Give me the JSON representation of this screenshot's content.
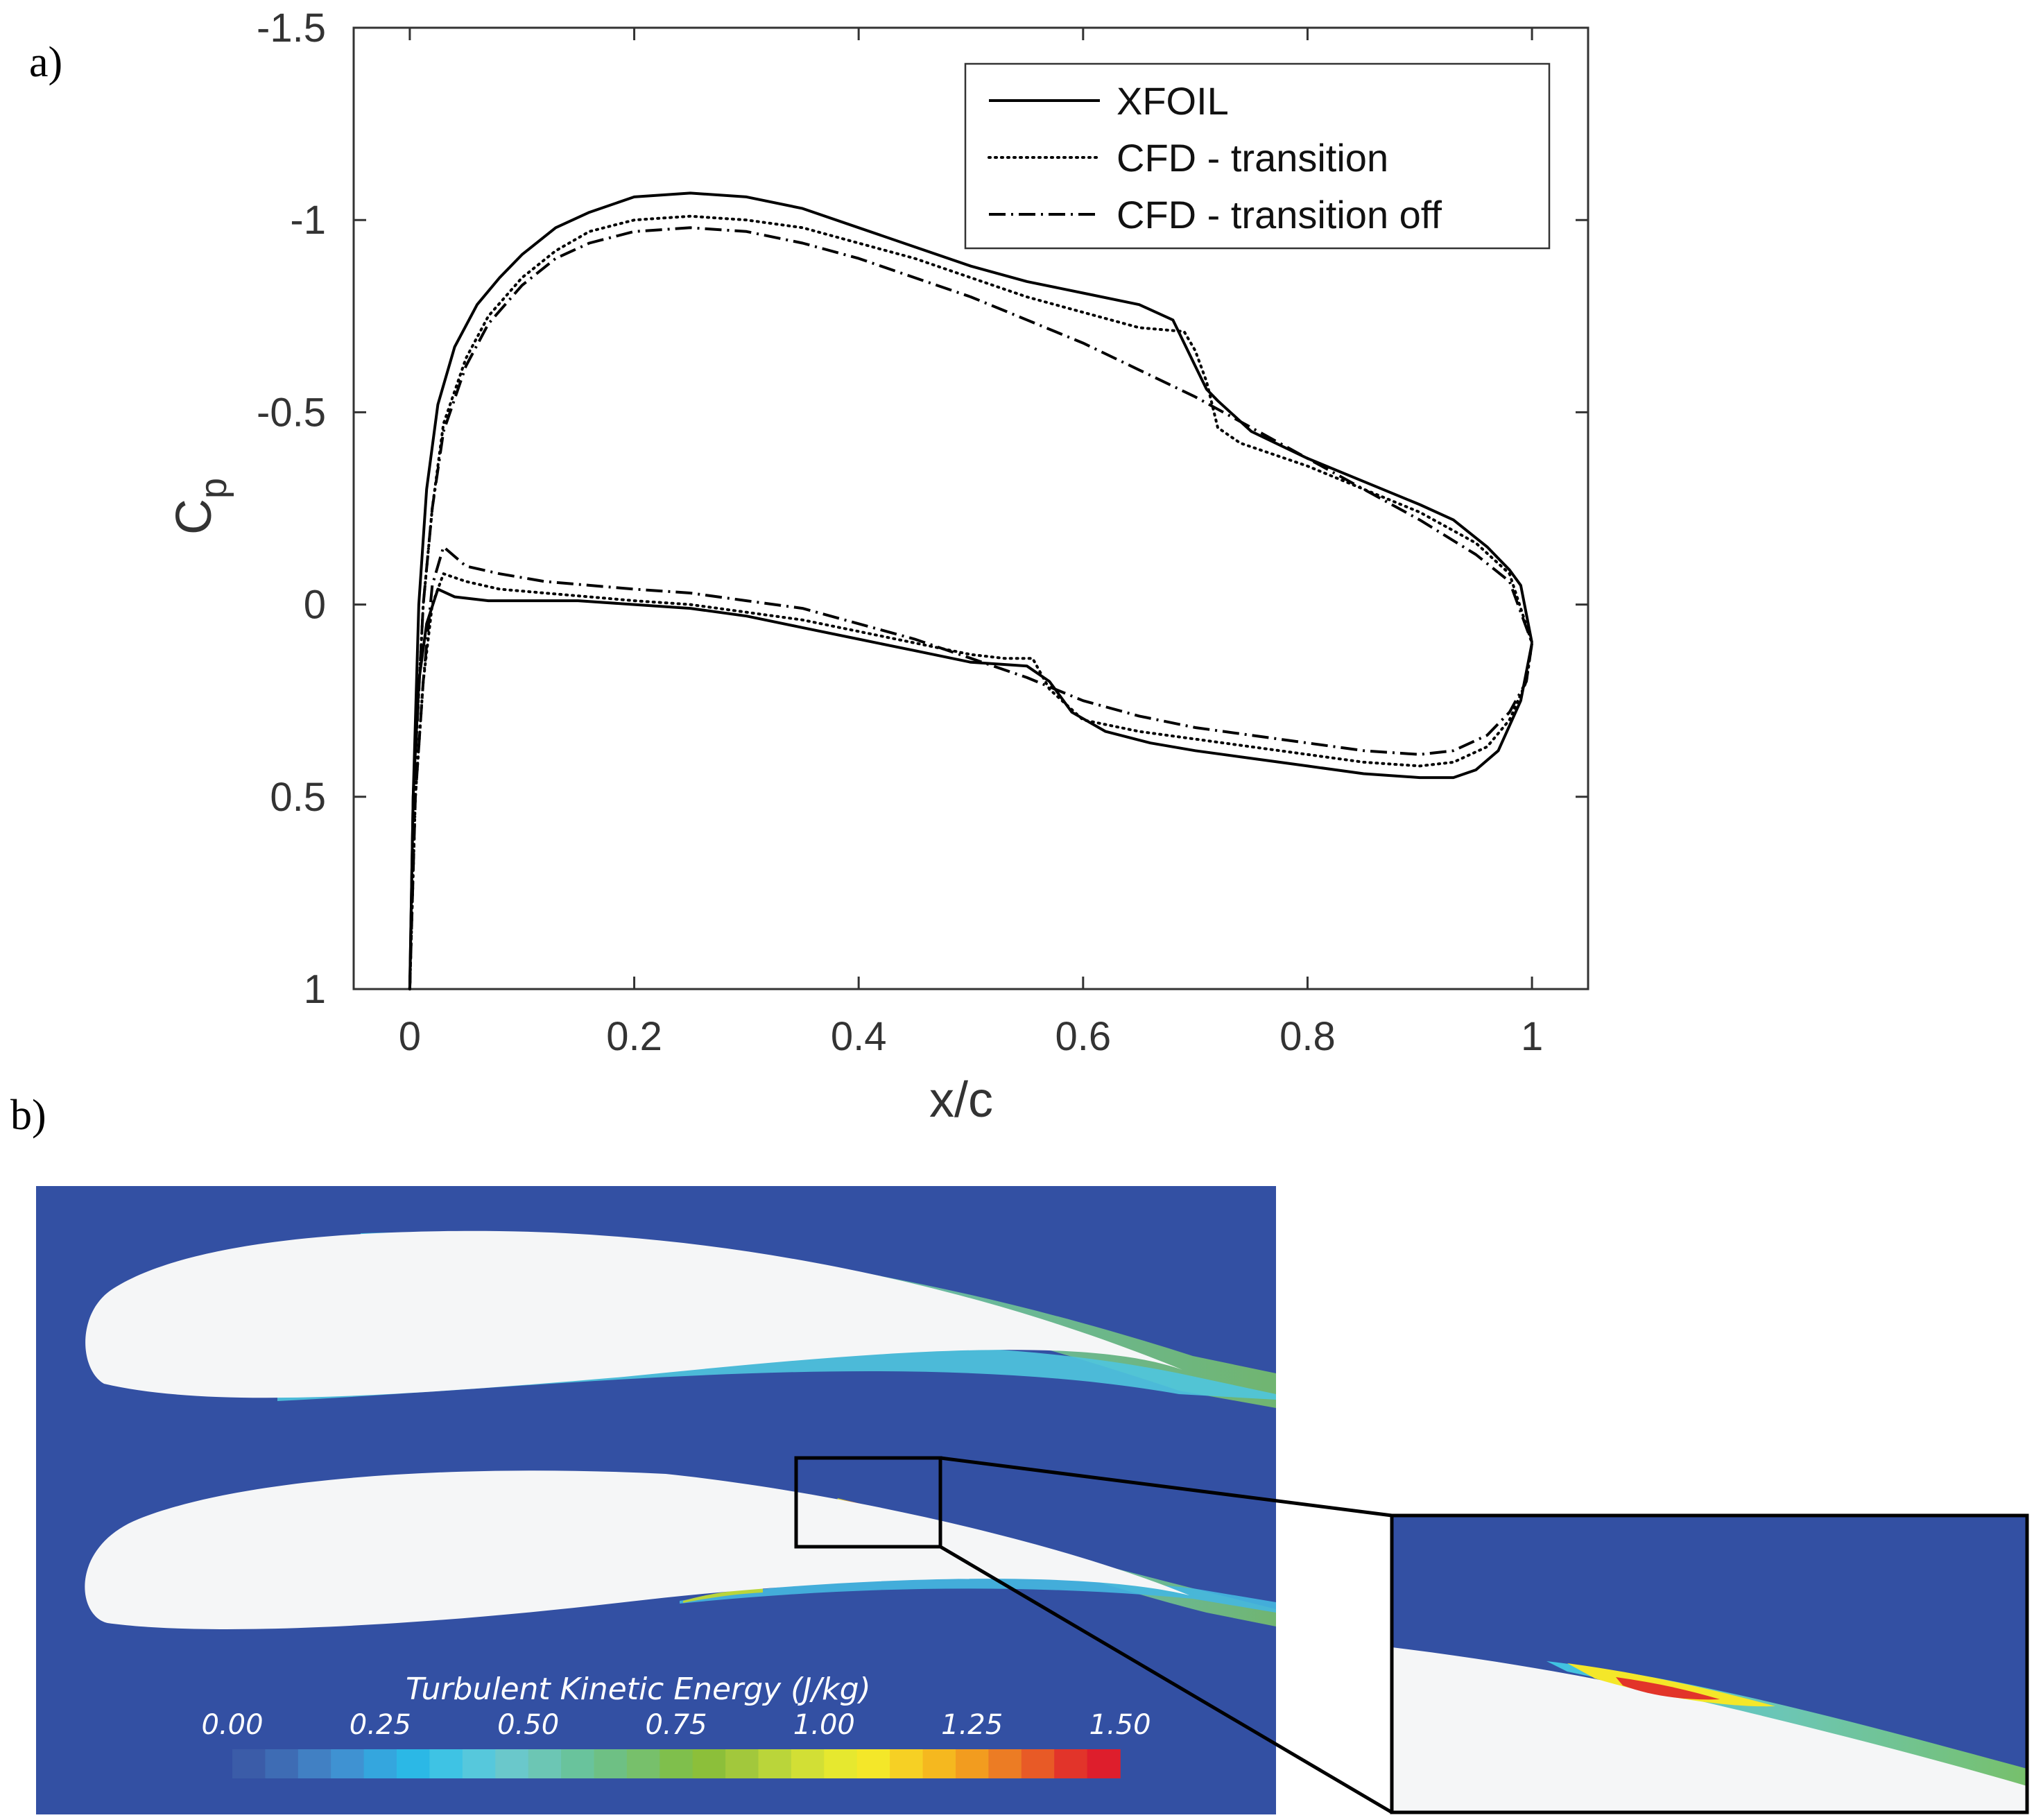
{
  "panel_labels": {
    "a": "a)",
    "b": "b)"
  },
  "chart_data": [
    {
      "type": "line",
      "title": "",
      "xlabel": "x/c",
      "ylabel": "C",
      "ylabel_subscript": "p",
      "xlim": [
        -0.05,
        1.05
      ],
      "ylim": [
        -1.5,
        1
      ],
      "y_reversed": true,
      "xticks": [
        0,
        0.2,
        0.4,
        0.6,
        0.8,
        1
      ],
      "xtick_labels": [
        "0",
        "0.2",
        "0.4",
        "0.6",
        "0.8",
        "1"
      ],
      "yticks": [
        -1.5,
        -1,
        -0.5,
        0,
        0.5,
        1
      ],
      "ytick_labels": [
        "-1.5",
        "-1",
        "-0.5",
        "0",
        "0.5",
        "1"
      ],
      "grid": false,
      "legend_position": "top-right",
      "series": [
        {
          "name": "XFOIL",
          "style": "solid",
          "upper": {
            "x": [
              0,
              0.003,
              0.008,
              0.015,
              0.025,
              0.04,
              0.06,
              0.08,
              0.1,
              0.13,
              0.16,
              0.2,
              0.25,
              0.3,
              0.35,
              0.4,
              0.45,
              0.5,
              0.55,
              0.6,
              0.65,
              0.68,
              0.7,
              0.71,
              0.72,
              0.75,
              0.8,
              0.85,
              0.9,
              0.93,
              0.96,
              0.98,
              0.99,
              1.0
            ],
            "y": [
              1,
              0.5,
              0,
              -0.3,
              -0.52,
              -0.67,
              -0.78,
              -0.85,
              -0.91,
              -0.98,
              -1.02,
              -1.06,
              -1.07,
              -1.06,
              -1.03,
              -0.98,
              -0.93,
              -0.88,
              -0.84,
              -0.81,
              -0.78,
              -0.74,
              -0.62,
              -0.56,
              -0.53,
              -0.45,
              -0.38,
              -0.32,
              -0.26,
              -0.22,
              -0.15,
              -0.09,
              -0.05,
              0.1
            ]
          },
          "lower": {
            "x": [
              0,
              0.003,
              0.008,
              0.015,
              0.025,
              0.04,
              0.07,
              0.1,
              0.15,
              0.2,
              0.25,
              0.3,
              0.35,
              0.4,
              0.45,
              0.5,
              0.55,
              0.57,
              0.59,
              0.62,
              0.66,
              0.7,
              0.75,
              0.8,
              0.85,
              0.9,
              0.93,
              0.95,
              0.97,
              0.99,
              1.0
            ],
            "y": [
              1,
              0.5,
              0.2,
              0.05,
              -0.04,
              -0.02,
              -0.01,
              -0.01,
              -0.01,
              0,
              0.01,
              0.03,
              0.06,
              0.09,
              0.12,
              0.15,
              0.16,
              0.2,
              0.28,
              0.33,
              0.36,
              0.38,
              0.4,
              0.42,
              0.44,
              0.45,
              0.45,
              0.43,
              0.38,
              0.25,
              0.1
            ]
          }
        },
        {
          "name": "CFD - transition",
          "style": "dotted",
          "upper": {
            "x": [
              0,
              0.005,
              0.012,
              0.02,
              0.03,
              0.05,
              0.07,
              0.1,
              0.13,
              0.16,
              0.2,
              0.25,
              0.3,
              0.35,
              0.4,
              0.45,
              0.5,
              0.55,
              0.6,
              0.65,
              0.69,
              0.7,
              0.71,
              0.72,
              0.74,
              0.8,
              0.85,
              0.9,
              0.95,
              0.98,
              1.0
            ],
            "y": [
              1,
              0.4,
              0,
              -0.25,
              -0.47,
              -0.64,
              -0.75,
              -0.85,
              -0.92,
              -0.97,
              -1.0,
              -1.01,
              -1.0,
              -0.98,
              -0.94,
              -0.9,
              -0.85,
              -0.8,
              -0.76,
              -0.72,
              -0.71,
              -0.66,
              -0.58,
              -0.46,
              -0.42,
              -0.36,
              -0.3,
              -0.24,
              -0.16,
              -0.08,
              0.1
            ]
          },
          "lower": {
            "x": [
              0,
              0.005,
              0.012,
              0.02,
              0.03,
              0.05,
              0.08,
              0.12,
              0.16,
              0.2,
              0.25,
              0.3,
              0.35,
              0.4,
              0.45,
              0.5,
              0.53,
              0.555,
              0.57,
              0.6,
              0.65,
              0.7,
              0.75,
              0.8,
              0.85,
              0.9,
              0.93,
              0.96,
              0.98,
              0.995,
              1.0
            ],
            "y": [
              1,
              0.5,
              0.2,
              0,
              -0.08,
              -0.06,
              -0.04,
              -0.03,
              -0.02,
              -0.01,
              0,
              0.02,
              0.04,
              0.07,
              0.1,
              0.13,
              0.14,
              0.14,
              0.22,
              0.3,
              0.33,
              0.35,
              0.37,
              0.39,
              0.41,
              0.42,
              0.41,
              0.37,
              0.3,
              0.2,
              0.1
            ]
          }
        },
        {
          "name": "CFD - transition off",
          "style": "dashdot",
          "upper": {
            "x": [
              0,
              0.005,
              0.012,
              0.02,
              0.03,
              0.05,
              0.07,
              0.1,
              0.13,
              0.16,
              0.2,
              0.25,
              0.3,
              0.35,
              0.4,
              0.45,
              0.5,
              0.55,
              0.6,
              0.65,
              0.7,
              0.75,
              0.8,
              0.85,
              0.9,
              0.95,
              0.98,
              1.0
            ],
            "y": [
              1,
              0.4,
              0,
              -0.25,
              -0.45,
              -0.62,
              -0.73,
              -0.83,
              -0.9,
              -0.94,
              -0.97,
              -0.98,
              -0.97,
              -0.94,
              -0.9,
              -0.85,
              -0.8,
              -0.74,
              -0.68,
              -0.61,
              -0.54,
              -0.46,
              -0.38,
              -0.3,
              -0.22,
              -0.13,
              -0.06,
              0.1
            ]
          },
          "lower": {
            "x": [
              0,
              0.005,
              0.012,
              0.02,
              0.03,
              0.05,
              0.08,
              0.12,
              0.16,
              0.2,
              0.25,
              0.3,
              0.35,
              0.4,
              0.45,
              0.5,
              0.55,
              0.6,
              0.65,
              0.7,
              0.75,
              0.8,
              0.85,
              0.9,
              0.93,
              0.96,
              0.98,
              0.995,
              1.0
            ],
            "y": [
              1,
              0.5,
              0.2,
              -0.05,
              -0.15,
              -0.1,
              -0.08,
              -0.06,
              -0.05,
              -0.04,
              -0.03,
              -0.01,
              0.01,
              0.05,
              0.09,
              0.14,
              0.19,
              0.25,
              0.29,
              0.32,
              0.34,
              0.36,
              0.38,
              0.39,
              0.38,
              0.34,
              0.28,
              0.2,
              0.1
            ]
          }
        }
      ]
    },
    {
      "type": "heatmap",
      "description_free": true,
      "colorbar_title": "Turbulent Kinetic Energy (J/kg)",
      "colorbar_range": [
        0.0,
        1.5
      ],
      "colorbar_tick_labels": [
        "0.00",
        "0.25",
        "0.50",
        "0.75",
        "1.00",
        "1.25",
        "1.50"
      ],
      "colorbar_colors": [
        "#3b5ca8",
        "#3e6cb4",
        "#4180c3",
        "#3f92d2",
        "#34a6de",
        "#2bb8e6",
        "#3ec3e4",
        "#56c8dc",
        "#6ac8cb",
        "#6cc6b4",
        "#69c39c",
        "#6ec084",
        "#77c06b",
        "#7fbf4c",
        "#8cbf3a",
        "#a2c83c",
        "#bad53a",
        "#d2df35",
        "#e6e82f",
        "#f4e729",
        "#f6d024",
        "#f5b81f",
        "#f29c1f",
        "#ec7c24",
        "#e85a26",
        "#e2342a",
        "#de1e2c"
      ],
      "background_color": "#3350a3"
    }
  ]
}
